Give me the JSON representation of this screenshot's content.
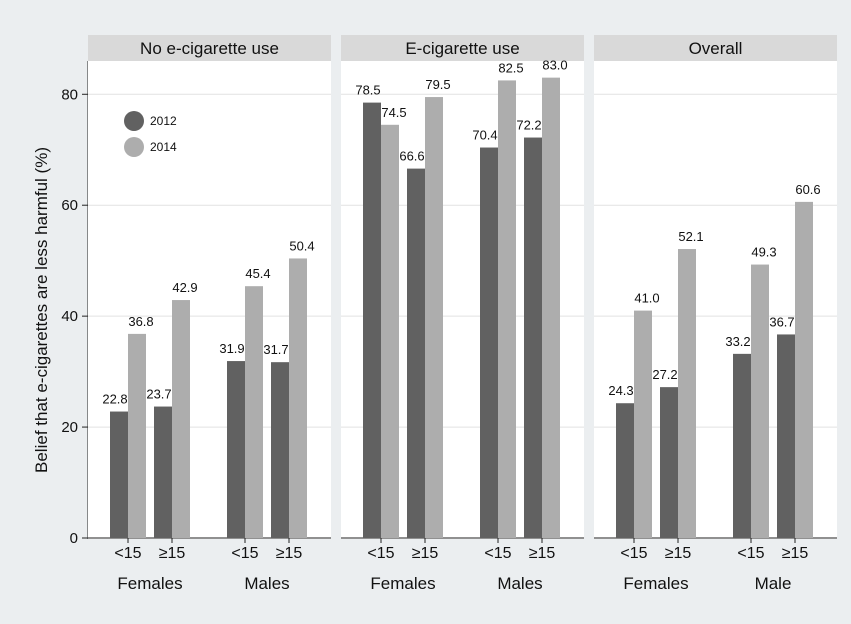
{
  "chart_data": {
    "type": "bar",
    "ylabel": "Belief that e-cigarettes are less harmful (%)",
    "ylim": [
      0,
      86
    ],
    "yticks": [
      0,
      20,
      40,
      60,
      80
    ],
    "grid": true,
    "legend_placement": "top-left",
    "series": [
      {
        "name": "2012",
        "color": "#616161"
      },
      {
        "name": "2014",
        "color": "#adadad"
      }
    ],
    "panels": [
      {
        "title": "No e-cigarette use",
        "groups": [
          {
            "label": "Females",
            "subgroups": [
              {
                "label": "<15",
                "values": [
                  22.8,
                  36.8
                ],
                "labels": [
                  "22.8",
                  "36.8"
                ]
              },
              {
                "label": "≥15",
                "values": [
                  23.7,
                  42.9
                ],
                "labels": [
                  "23.7",
                  "42.9"
                ]
              }
            ]
          },
          {
            "label": "Males",
            "subgroups": [
              {
                "label": "<15",
                "values": [
                  31.9,
                  45.4
                ],
                "labels": [
                  "31.9",
                  "45.4"
                ]
              },
              {
                "label": "≥15",
                "values": [
                  31.7,
                  50.4
                ],
                "labels": [
                  "31.7",
                  "50.4"
                ]
              }
            ]
          }
        ]
      },
      {
        "title": "E-cigarette use",
        "groups": [
          {
            "label": "Females",
            "subgroups": [
              {
                "label": "<15",
                "values": [
                  78.5,
                  74.5
                ],
                "labels": [
                  "78.5",
                  "74.5"
                ]
              },
              {
                "label": "≥15",
                "values": [
                  66.6,
                  79.5
                ],
                "labels": [
                  "66.6",
                  "79.5"
                ]
              }
            ]
          },
          {
            "label": "Males",
            "subgroups": [
              {
                "label": "<15",
                "values": [
                  70.4,
                  82.5
                ],
                "labels": [
                  "70.4",
                  "82.5"
                ]
              },
              {
                "label": "≥15",
                "values": [
                  72.2,
                  83.0
                ],
                "labels": [
                  "72.2",
                  "83.0"
                ]
              }
            ]
          }
        ]
      },
      {
        "title": "Overall",
        "groups": [
          {
            "label": "Females",
            "subgroups": [
              {
                "label": "<15",
                "values": [
                  24.3,
                  41.0
                ],
                "labels": [
                  "24.3",
                  "41.0"
                ]
              },
              {
                "label": "≥15",
                "values": [
                  27.2,
                  52.1
                ],
                "labels": [
                  "27.2",
                  "52.1"
                ]
              }
            ]
          },
          {
            "label": "Male",
            "subgroups": [
              {
                "label": "<15",
                "values": [
                  33.2,
                  49.3
                ],
                "labels": [
                  "33.2",
                  "49.3"
                ]
              },
              {
                "label": "≥15",
                "values": [
                  36.7,
                  60.6
                ],
                "labels": [
                  "36.7",
                  "60.6"
                ]
              }
            ]
          }
        ]
      }
    ]
  }
}
